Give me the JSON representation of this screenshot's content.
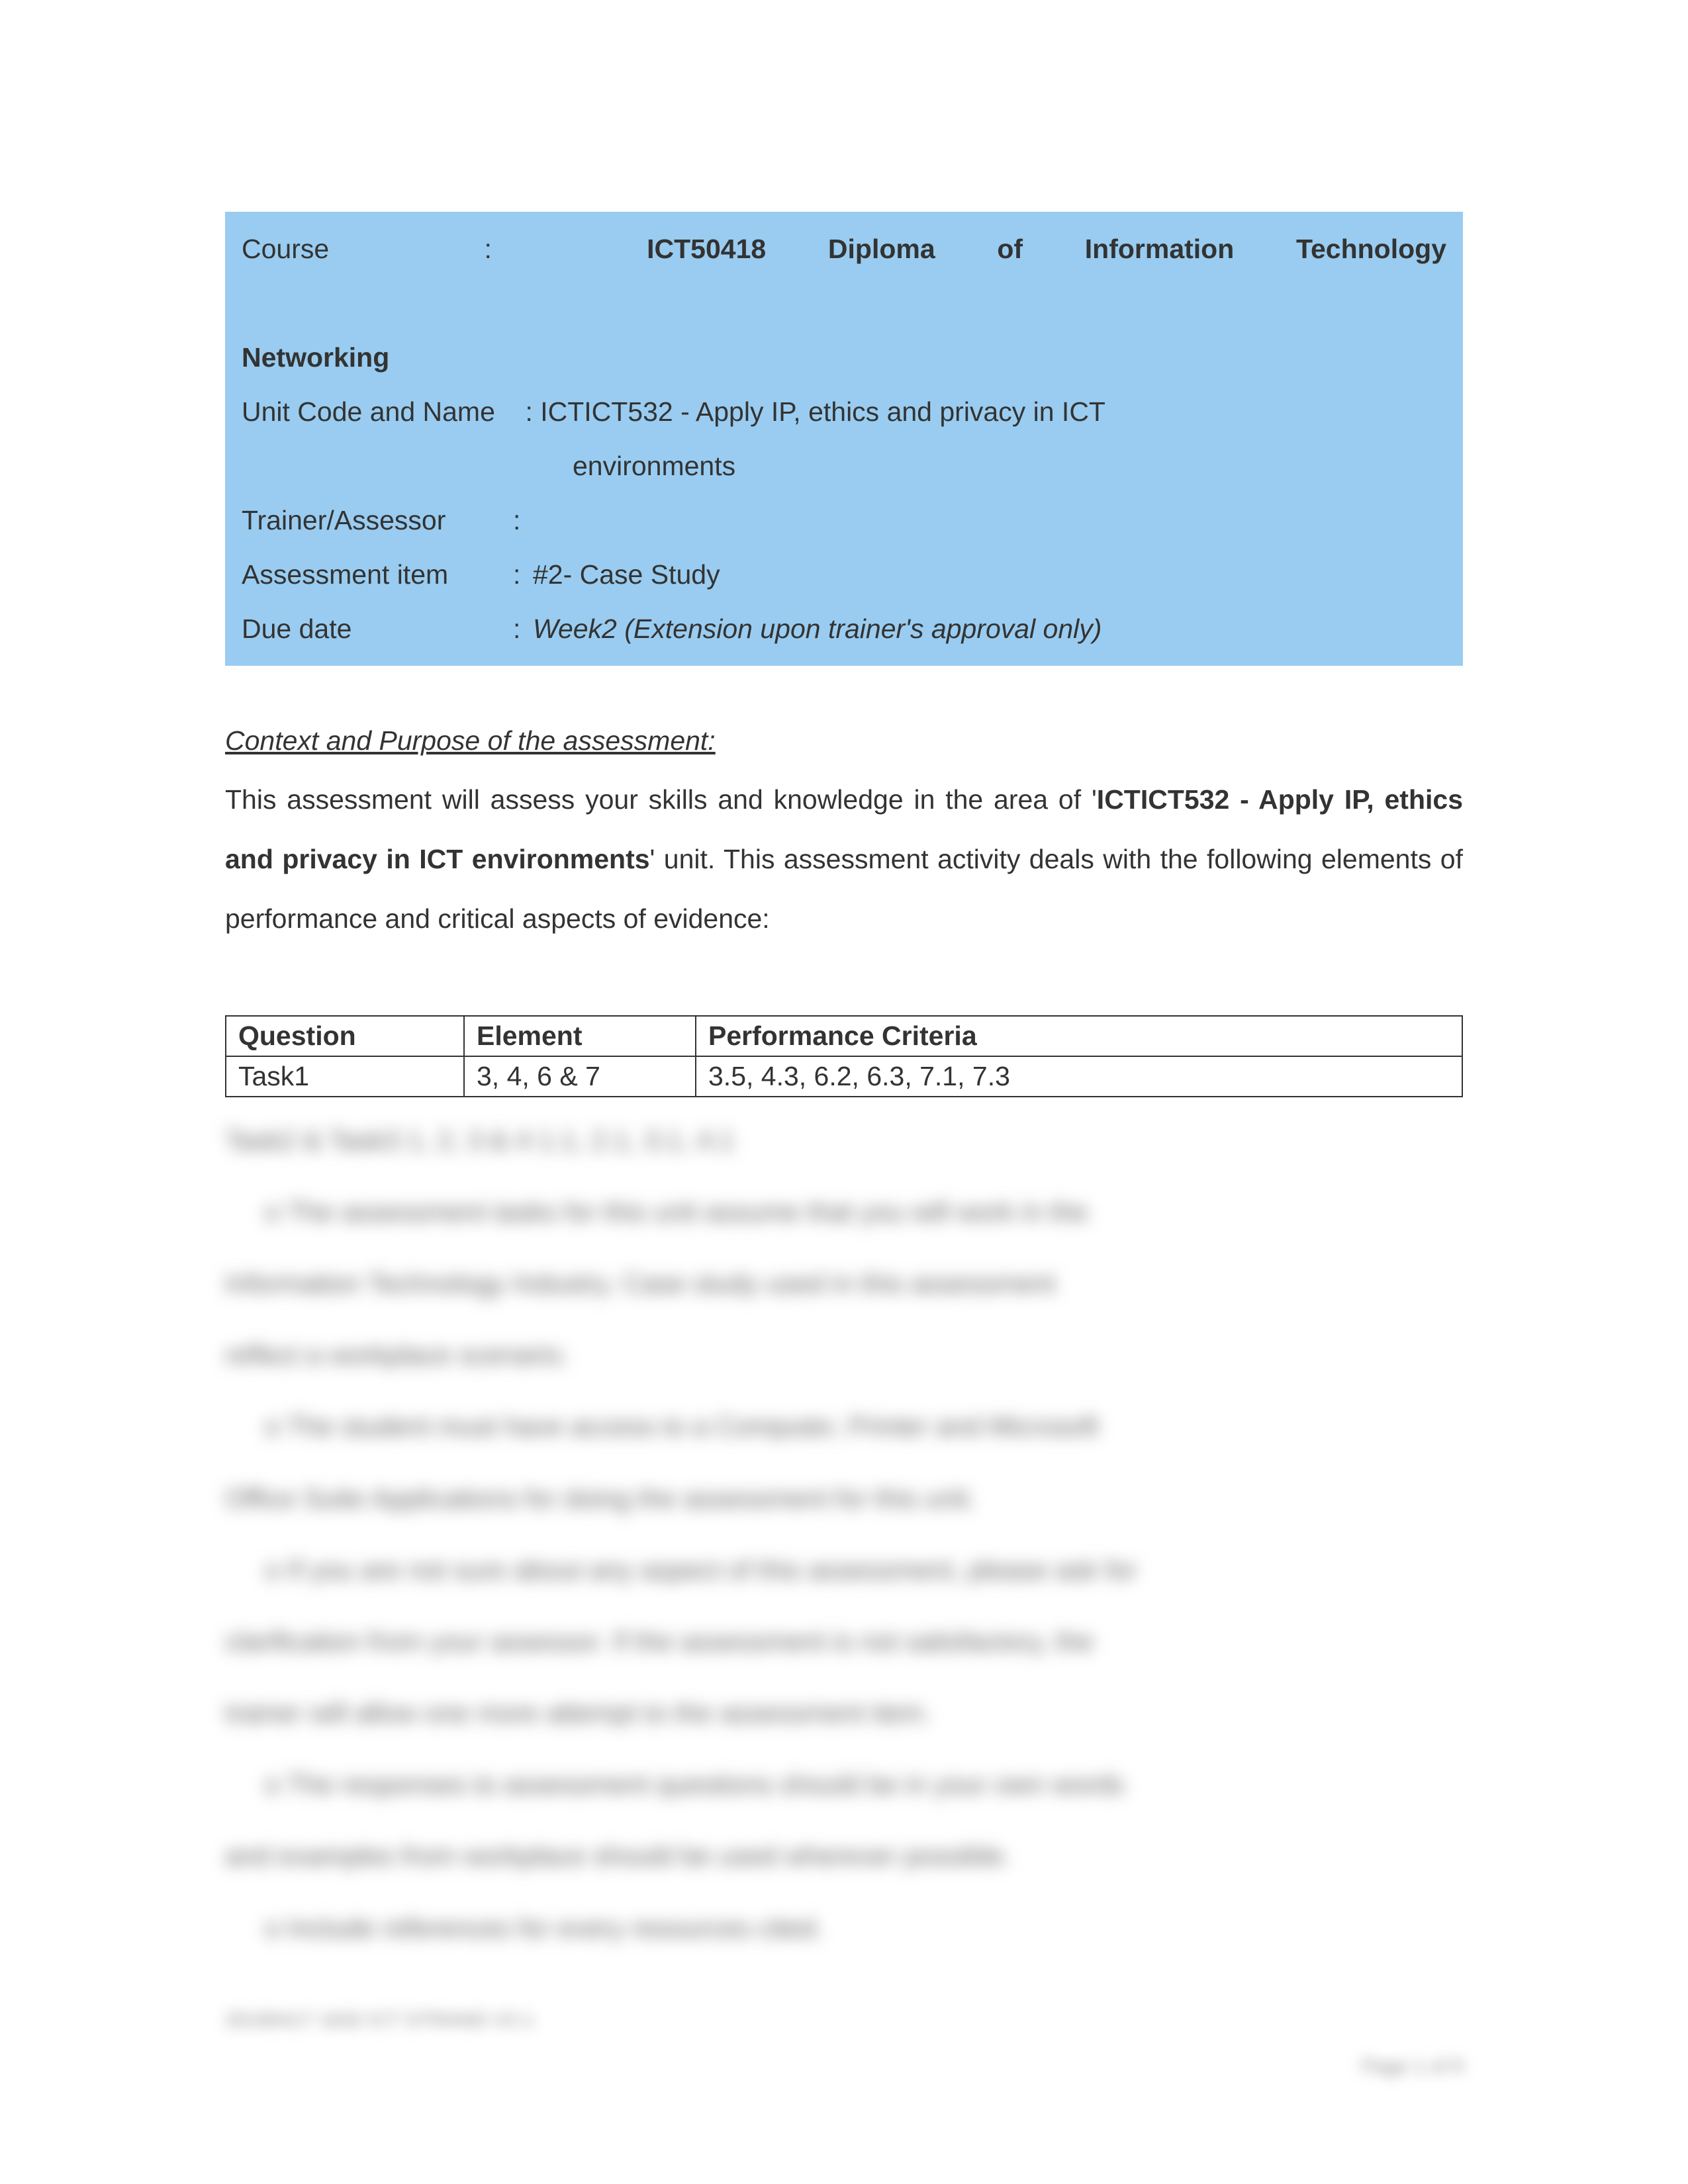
{
  "header": {
    "course_label": "Course",
    "course_value_prefix": "",
    "course_bold": "ICT50418 Diploma of Information Technology Networking",
    "unit_label": "Unit Code and Name",
    "unit_value": "ICTICT532 - Apply IP, ethics and privacy in ICT environments",
    "unit_indent_word": "environments",
    "trainer_label": "Trainer/Assessor",
    "trainer_value": "",
    "assessment_label": "Assessment item",
    "assessment_value": "#2- Case Study",
    "due_label": "Due date",
    "due_value": "Week2 (Extension upon trainer's approval only)"
  },
  "section": {
    "heading": "Context and Purpose of the assessment:",
    "body_pre": "This assessment will assess your skills and knowledge in the area of '",
    "body_bold": "ICTICT532 - Apply IP, ethics and privacy in ICT environments",
    "body_post": "' unit. This assessment activity deals with the following elements of performance and critical aspects of evidence:"
  },
  "table": {
    "h1": "Question",
    "h2": "Element",
    "h3": "Performance Criteria",
    "r1c1": "Task1",
    "r1c2": "3, 4, 6 & 7",
    "r1c3": "3.5, 4.3, 6.2, 6.3, 7.1, 7.3"
  },
  "blurred": {
    "row2": "Task2 & Task3    1, 2, 3 & 4        1.1, 2.1, 3.1, 4.1",
    "b1a": "o  The assessment tasks for this unit assume that you will work in the",
    "b1b": "Information Technology Industry. Case study used in this assessment",
    "b1c": "reflect a workplace scenario.",
    "b2a": "o  The student must have access to a Computer, Printer and Microsoft",
    "b2b": "Office Suite Applications for doing the assessment for this unit.",
    "b3a": "o  If you are not sure about any aspect of this assessment, please ask for",
    "b3b": "clarification from your assessor. If the assessment is not satisfactory, the",
    "b3c": "trainer will allow one more attempt to the assessment item.",
    "b4a": "o  The responses to assessment questions should be in your own words",
    "b4b": "and examples from workplace should be used wherever possible.",
    "b5": "o  Include references for every resources cited."
  },
  "footer": {
    "left": "20190417 1632 ICT STRAND V2.1",
    "right": "Page 1 of 9"
  },
  "colors": {
    "header_bg": "#99ccf0",
    "text": "#333333",
    "page_bg": "#ffffff",
    "blur_text": "#666666"
  }
}
